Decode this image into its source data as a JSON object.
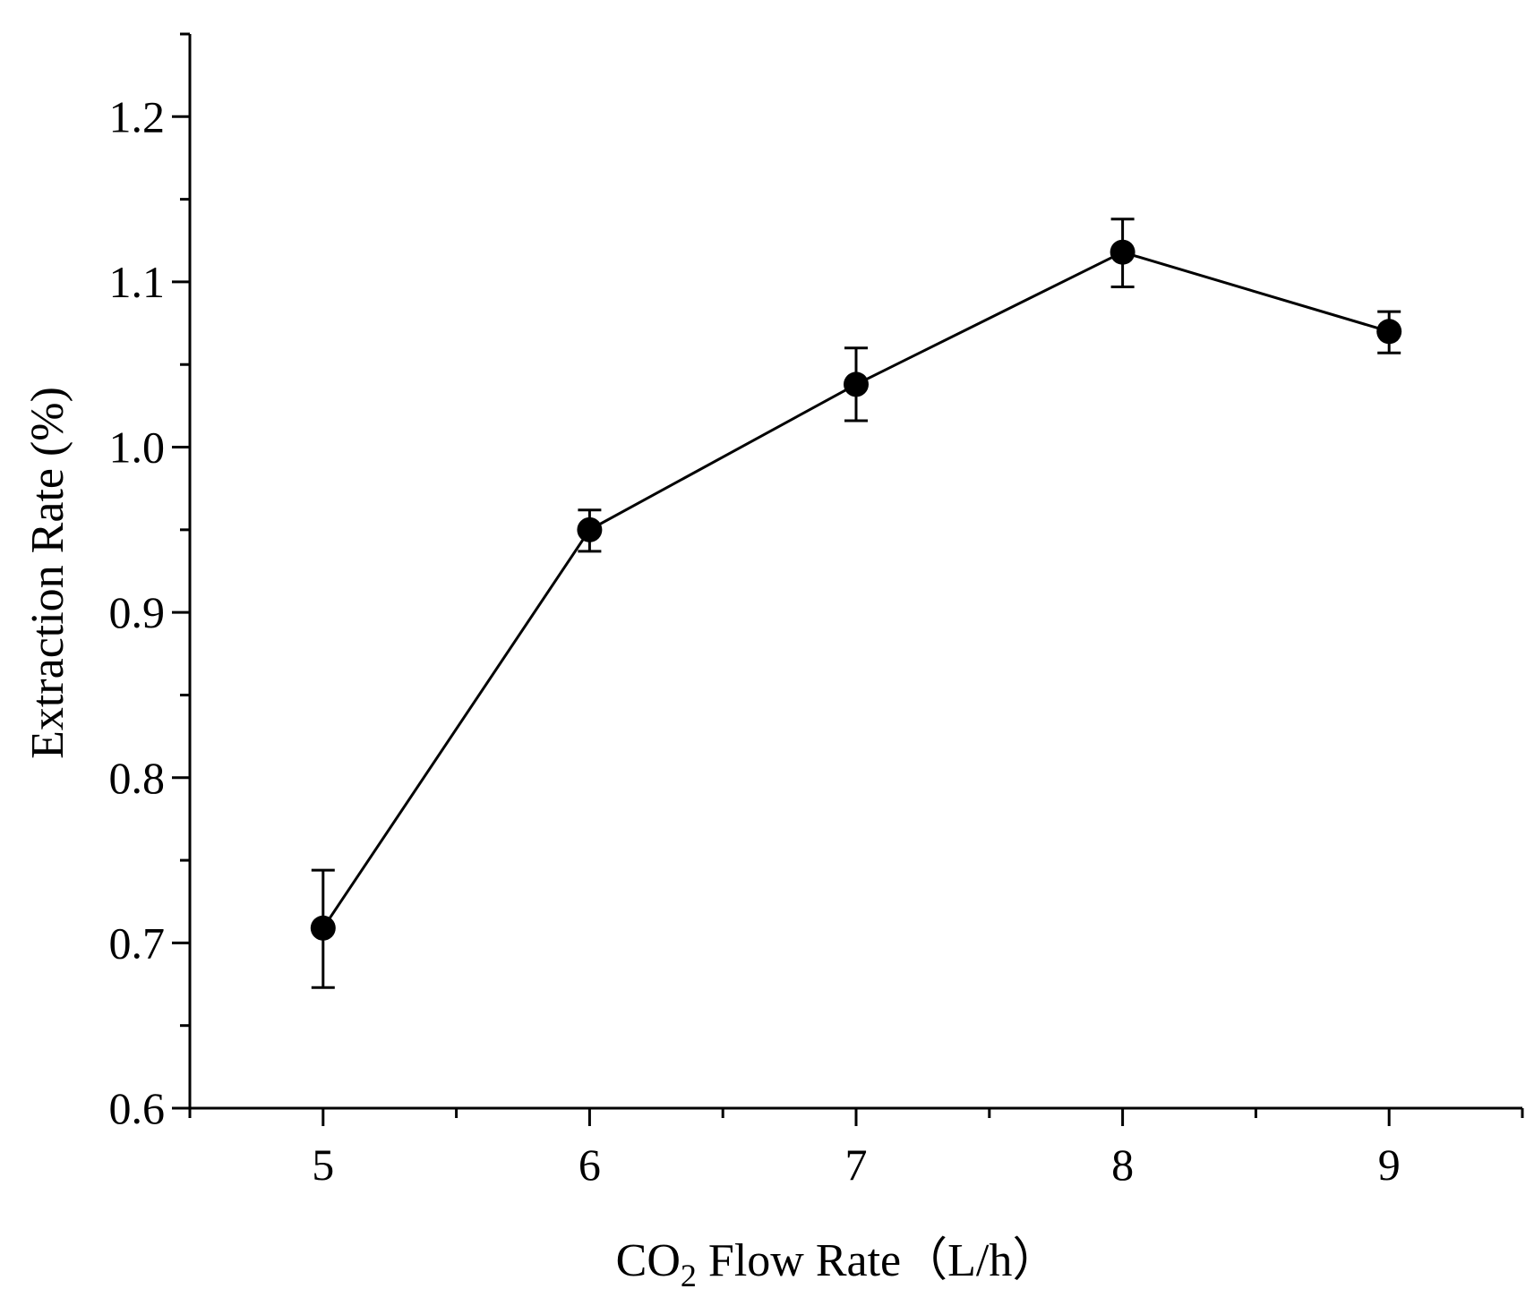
{
  "chart_data": {
    "type": "line",
    "title": "",
    "xlabel": "CO2 Flow Rate（L/h）",
    "xlabel_parts": {
      "pre": "CO",
      "sub": "2",
      "post": " Flow Rate（L/h）"
    },
    "ylabel": "Extraction Rate (%)",
    "xlim": [
      4.5,
      9.5
    ],
    "ylim": [
      0.6,
      1.25
    ],
    "x_ticks": [
      5,
      6,
      7,
      8,
      9
    ],
    "x_minor_ticks": [
      4.5,
      5.5,
      6.5,
      7.5,
      8.5,
      9.5
    ],
    "y_ticks": [
      0.6,
      0.7,
      0.8,
      0.9,
      1.0,
      1.1,
      1.2
    ],
    "y_tick_labels": [
      "0.6",
      "0.7",
      "0.8",
      "0.9",
      "1.0",
      "1.1",
      "1.2"
    ],
    "y_minor_ticks": [
      0.65,
      0.75,
      0.85,
      0.95,
      1.05,
      1.15,
      1.25
    ],
    "series": [
      {
        "name": "Extraction Rate",
        "color": "#000000",
        "x": [
          5,
          6,
          7,
          8,
          9
        ],
        "values": [
          0.709,
          0.95,
          1.038,
          1.118,
          1.07
        ],
        "err_low": [
          0.673,
          0.937,
          1.016,
          1.097,
          1.057
        ],
        "err_high": [
          0.744,
          0.962,
          1.06,
          1.138,
          1.082
        ]
      }
    ]
  }
}
